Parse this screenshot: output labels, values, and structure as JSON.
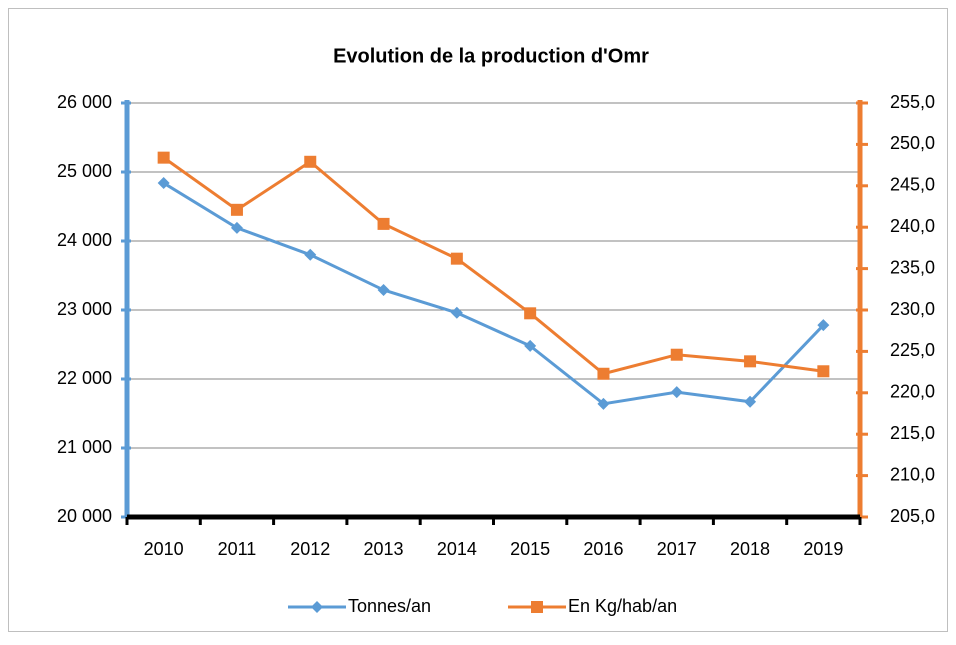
{
  "chart_data": {
    "type": "line",
    "title": "Evolution de la production d'Omr",
    "categories": [
      "2010",
      "2011",
      "2012",
      "2013",
      "2014",
      "2015",
      "2016",
      "2017",
      "2018",
      "2019"
    ],
    "series": [
      {
        "name": "Tonnes/an",
        "color": "#5b9bd5",
        "marker": "diamond",
        "values": [
          24840,
          24190,
          23800,
          23290,
          22960,
          22480,
          21640,
          21810,
          21670,
          22780
        ]
      },
      {
        "name": "En Kg/hab/an",
        "color": "#ed7d31",
        "marker": "square",
        "axis": "y2",
        "values": [
          248.4,
          242.1,
          247.9,
          240.4,
          236.2,
          229.6,
          222.3,
          224.6,
          223.8,
          222.6
        ]
      }
    ],
    "ylim": [
      20000,
      26000
    ],
    "yticks": [
      {
        "value": 20000,
        "label": "20 000"
      },
      {
        "value": 21000,
        "label": "21 000"
      },
      {
        "value": 22000,
        "label": "22 000"
      },
      {
        "value": 23000,
        "label": "23 000"
      },
      {
        "value": 24000,
        "label": "24 000"
      },
      {
        "value": 25000,
        "label": "25 000"
      },
      {
        "value": 26000,
        "label": "26 000"
      }
    ],
    "y2lim": [
      205,
      255
    ],
    "y2ticks": [
      {
        "value": 205,
        "label": "205,0"
      },
      {
        "value": 210,
        "label": "210,0"
      },
      {
        "value": 215,
        "label": "215,0"
      },
      {
        "value": 220,
        "label": "220,0"
      },
      {
        "value": 225,
        "label": "225,0"
      },
      {
        "value": 230,
        "label": "230,0"
      },
      {
        "value": 235,
        "label": "235,0"
      },
      {
        "value": 240,
        "label": "240,0"
      },
      {
        "value": 245,
        "label": "245,0"
      },
      {
        "value": 250,
        "label": "250,0"
      },
      {
        "value": 255,
        "label": "255,0"
      }
    ],
    "grid": true,
    "legend": "bottom"
  }
}
